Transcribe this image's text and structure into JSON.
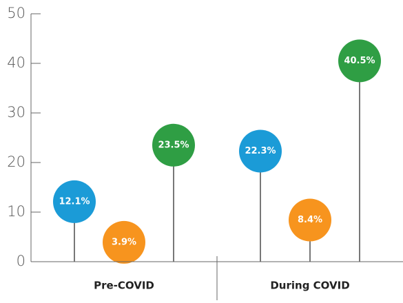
{
  "chart_data": {
    "type": "lollipop",
    "categories": [
      "Pre-COVID",
      "During COVID"
    ],
    "series": [
      {
        "color": "#1b9bd7",
        "values": [
          12.1,
          22.3
        ],
        "value_labels": [
          "12.1%",
          "22.3%"
        ]
      },
      {
        "color": "#f7941e",
        "values": [
          3.9,
          8.4
        ],
        "value_labels": [
          "3.9%",
          "8.4%"
        ]
      },
      {
        "color": "#2f9e44",
        "values": [
          23.5,
          40.5
        ],
        "value_labels": [
          "23.5%",
          "40.5%"
        ]
      }
    ],
    "ylim": [
      0,
      50
    ],
    "yticks": [
      0,
      10,
      20,
      30,
      40,
      50
    ]
  }
}
